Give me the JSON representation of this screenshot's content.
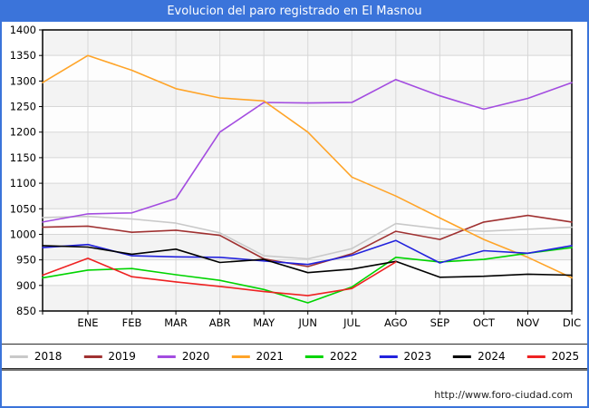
{
  "title": "Evolucion del paro registrado en El Masnou",
  "footer": {
    "url": "http://www.foro-ciudad.com"
  },
  "chart_data": {
    "type": "line",
    "title": "Evolucion del paro registrado en El Masnou",
    "xlabel": "",
    "ylabel": "",
    "x_categories": [
      "ENE",
      "FEB",
      "MAR",
      "ABR",
      "MAY",
      "JUN",
      "JUL",
      "AGO",
      "SEP",
      "OCT",
      "NOV",
      "DIC"
    ],
    "ylim": [
      850,
      1400
    ],
    "ytick_step": 50,
    "yticks": [
      850,
      900,
      950,
      1000,
      1050,
      1100,
      1150,
      1200,
      1250,
      1300,
      1350,
      1400
    ],
    "grid": true,
    "plot_bands_alternating": [
      "#f3f3f3",
      "#fdfdfd"
    ],
    "legend_position": "bottom-center",
    "first_point_note": "Each line begins at the left axis with the previous December's value",
    "series": [
      {
        "name": "2018",
        "color": "#c9c9c9",
        "prev_dec": 1033,
        "values": [
          1035,
          1030,
          1022,
          1003,
          958,
          952,
          972,
          1021,
          1011,
          1006,
          1010,
          1014
        ]
      },
      {
        "name": "2019",
        "color": "#a03232",
        "prev_dec": 1014,
        "values": [
          1016,
          1004,
          1008,
          998,
          952,
          937,
          962,
          1006,
          990,
          1024,
          1037,
          1024
        ]
      },
      {
        "name": "2020",
        "color": "#a34ce0",
        "prev_dec": 1024,
        "values": [
          1040,
          1042,
          1070,
          1200,
          1258,
          1257,
          1258,
          1303,
          1271,
          1245,
          1266,
          1297
        ]
      },
      {
        "name": "2021",
        "color": "#ffa428",
        "prev_dec": 1297,
        "values": [
          1350,
          1321,
          1285,
          1267,
          1261,
          1200,
          1112,
          1075,
          1032,
          990,
          955,
          915
        ]
      },
      {
        "name": "2022",
        "color": "#00d400",
        "prev_dec": 915,
        "values": [
          930,
          933,
          921,
          910,
          892,
          866,
          897,
          955,
          946,
          951,
          963,
          974
        ]
      },
      {
        "name": "2023",
        "color": "#2222dd",
        "prev_dec": 974,
        "values": [
          980,
          958,
          956,
          955,
          948,
          941,
          959,
          988,
          944,
          968,
          963,
          978
        ]
      },
      {
        "name": "2024",
        "color": "#000000",
        "prev_dec": 978,
        "values": [
          975,
          961,
          971,
          945,
          951,
          925,
          932,
          947,
          916,
          918,
          922,
          920
        ]
      },
      {
        "name": "2025",
        "color": "#ee2222",
        "prev_dec": 920,
        "values": [
          953,
          917,
          907,
          898,
          888,
          880,
          894,
          946
        ]
      }
    ]
  }
}
